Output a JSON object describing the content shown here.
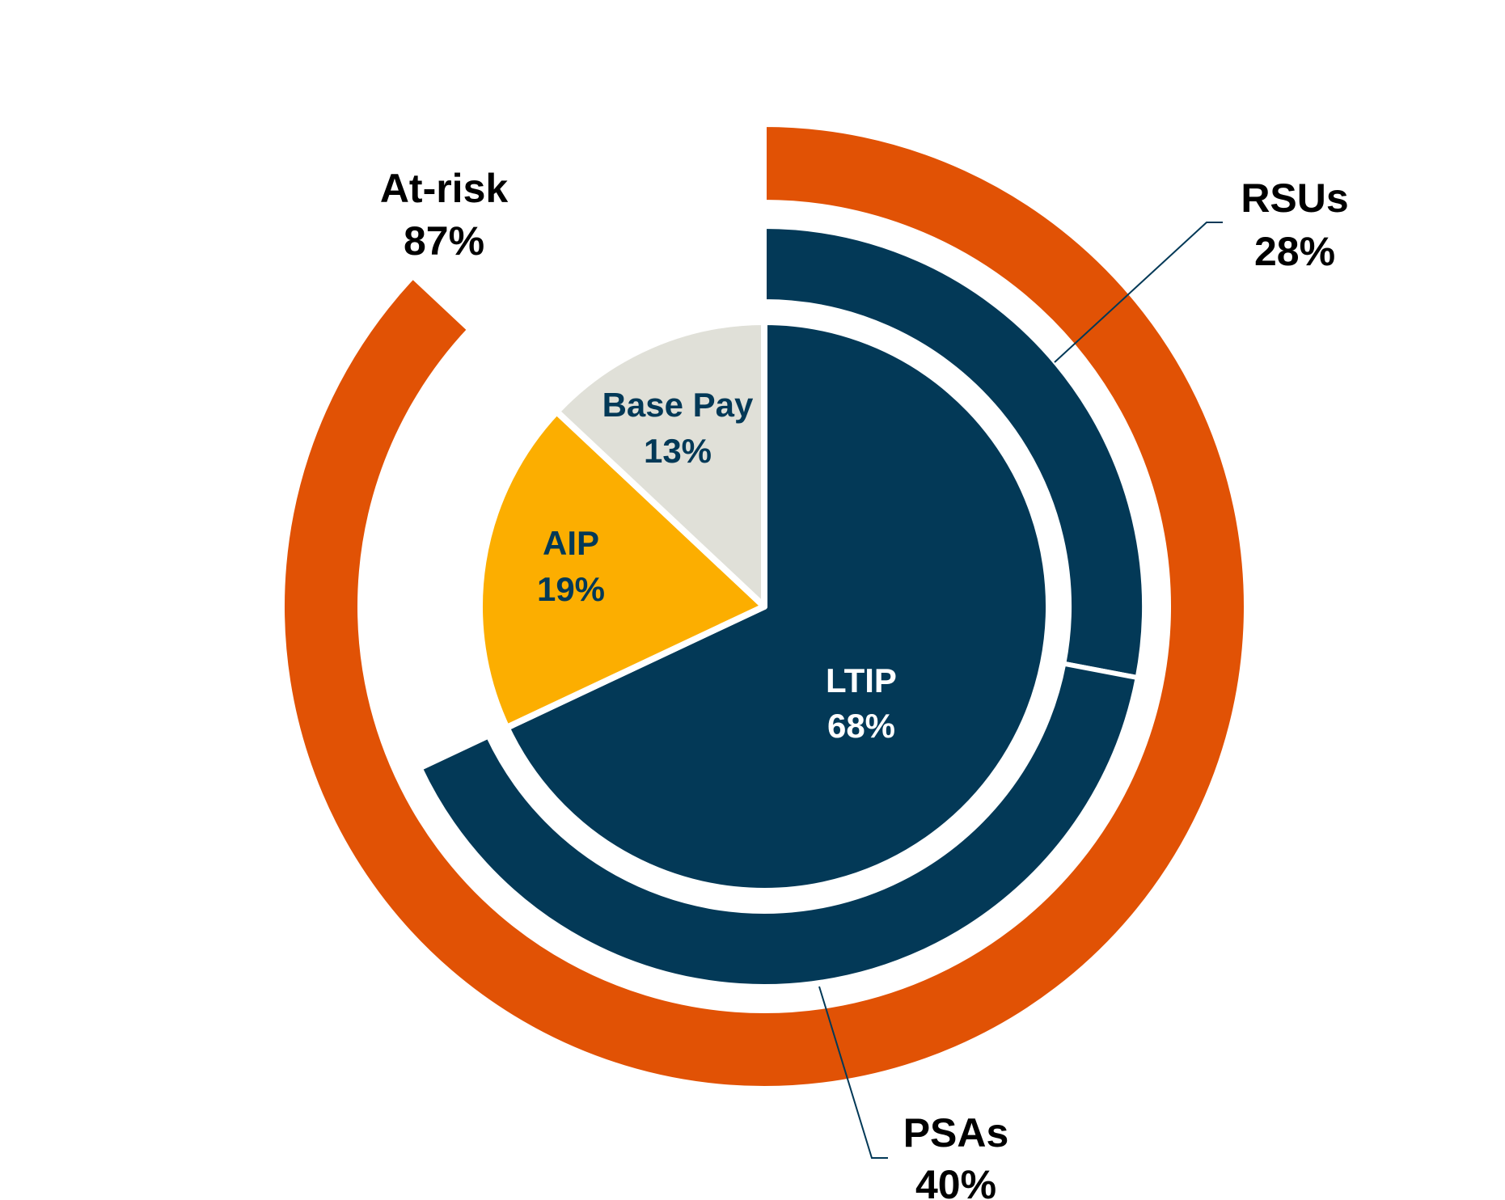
{
  "colors": {
    "ltip": "#033957",
    "aip": "#FCAE00",
    "base": "#E0E0D8",
    "atrisk": "#E15205",
    "leader": "#033957",
    "label_dark": "#000000",
    "label_navy": "#033957",
    "label_white": "#FFFFFF"
  },
  "chart_data": {
    "type": "pie",
    "rings": [
      {
        "ring": "inner",
        "slices": [
          {
            "name": "LTIP",
            "value": 68,
            "value_label": "68%",
            "color": "#033957"
          },
          {
            "name": "AIP",
            "value": 19,
            "value_label": "19%",
            "color": "#FCAE00"
          },
          {
            "name": "Base Pay",
            "value": 13,
            "value_label": "13%",
            "color": "#E0E0D8"
          }
        ]
      },
      {
        "ring": "middle",
        "slices": [
          {
            "name": "RSUs",
            "value": 28,
            "value_label": "28%",
            "color": "#033957"
          },
          {
            "name": "PSAs",
            "value": 40,
            "value_label": "40%",
            "color": "#033957"
          }
        ]
      },
      {
        "ring": "outer",
        "slices": [
          {
            "name": "At-risk",
            "value": 87,
            "value_label": "87%",
            "color": "#E15205"
          }
        ]
      }
    ],
    "start_angle": "12 o'clock",
    "direction": "clockwise",
    "legend": "none"
  }
}
